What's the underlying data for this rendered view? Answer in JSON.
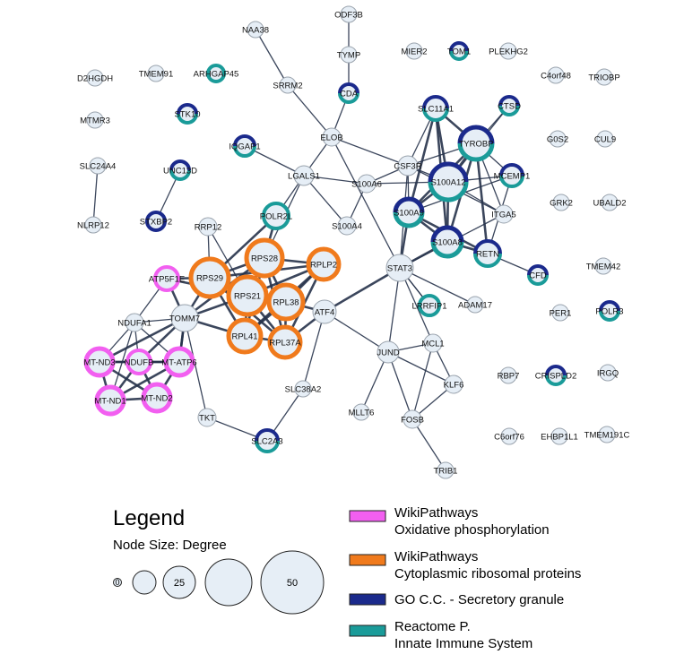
{
  "legend": {
    "title": "Legend",
    "size_label": "Node Size:  Degree",
    "size_examples": [
      "0",
      "",
      "25",
      "",
      "50"
    ],
    "categories": [
      {
        "color": "#f25ff0",
        "line1": "WikiPathways",
        "line2": "Oxidative phosphorylation"
      },
      {
        "color": "#f07a1c",
        "line1": "WikiPathways",
        "line2": "Cytoplasmic ribosomal proteins"
      },
      {
        "color": "#1b2a8c",
        "line1": "GO C.C. - Secretory granule",
        "line2": ""
      },
      {
        "color": "#1a9b99",
        "line1": "Reactome P.",
        "line2": "Innate Immune System"
      }
    ]
  },
  "colors": {
    "node_fill": "#e6eef6",
    "node_stroke": "#9aa3ad",
    "edge": "#26324a",
    "oxphos": "#f25ff0",
    "ribosomal": "#f07a1c",
    "secretory": "#1b2a8c",
    "innate": "#1a9b99"
  },
  "nodes": [
    {
      "id": "ODF3B",
      "label": "ODF3B"
    },
    {
      "id": "NAA38",
      "label": "NAA38"
    },
    {
      "id": "TYMP",
      "label": "TYMP"
    },
    {
      "id": "MIER2",
      "label": "MIER2"
    },
    {
      "id": "TOM1",
      "label": "TOM1",
      "ring": [
        "secretory",
        "innate"
      ]
    },
    {
      "id": "PLEKHG2",
      "label": "PLEKHG2"
    },
    {
      "id": "D2HGDH",
      "label": "D2HGDH"
    },
    {
      "id": "TMEM91",
      "label": "TMEM91"
    },
    {
      "id": "ARHGAP45",
      "label": "ARHGAP45",
      "ring": [
        "innate"
      ]
    },
    {
      "id": "C4orf48",
      "label": "C4orf48"
    },
    {
      "id": "TRIOBP",
      "label": "TRIOBP"
    },
    {
      "id": "SRRM2",
      "label": "SRRM2"
    },
    {
      "id": "CDA",
      "label": "CDA",
      "ring": [
        "secretory",
        "innate"
      ]
    },
    {
      "id": "MTMR3",
      "label": "MTMR3"
    },
    {
      "id": "STK10",
      "label": "STK10",
      "ring": [
        "secretory",
        "innate"
      ]
    },
    {
      "id": "SLC11A1",
      "label": "SLC11A1",
      "ring": [
        "secretory",
        "innate"
      ]
    },
    {
      "id": "CTSD",
      "label": "CTSD",
      "ring": [
        "secretory",
        "innate"
      ]
    },
    {
      "id": "ELOB",
      "label": "ELOB"
    },
    {
      "id": "IQGAP1",
      "label": "IQGAP1",
      "ring": [
        "secretory",
        "innate"
      ]
    },
    {
      "id": "TYROBP",
      "label": "TYROBP",
      "ring": [
        "secretory",
        "innate"
      ]
    },
    {
      "id": "G0S2",
      "label": "G0S2"
    },
    {
      "id": "CUL9",
      "label": "CUL9"
    },
    {
      "id": "SLC24A4",
      "label": "SLC24A4"
    },
    {
      "id": "UNC13D",
      "label": "UNC13D",
      "ring": [
        "secretory",
        "innate"
      ]
    },
    {
      "id": "CSF3R",
      "label": "CSF3R"
    },
    {
      "id": "LGALS1",
      "label": "LGALS1"
    },
    {
      "id": "MCEMP1",
      "label": "MCEMP1",
      "ring": [
        "secretory",
        "innate"
      ]
    },
    {
      "id": "S100A6",
      "label": "S100A6"
    },
    {
      "id": "S100A12",
      "label": "S100A12",
      "ring": [
        "secretory",
        "innate"
      ]
    },
    {
      "id": "GRK2",
      "label": "GRK2"
    },
    {
      "id": "UBALD2",
      "label": "UBALD2"
    },
    {
      "id": "STXBP2",
      "label": "STXBP2",
      "ring": [
        "secretory"
      ]
    },
    {
      "id": "NLRP12",
      "label": "NLRP12"
    },
    {
      "id": "POLR2L",
      "label": "POLR2L",
      "ring": [
        "innate"
      ]
    },
    {
      "id": "RRP12",
      "label": "RRP12"
    },
    {
      "id": "S100A4",
      "label": "S100A4"
    },
    {
      "id": "S100A9",
      "label": "S100A9",
      "ring": [
        "secretory",
        "innate"
      ]
    },
    {
      "id": "ITGA5",
      "label": "ITGA5"
    },
    {
      "id": "S100A8",
      "label": "S100A8",
      "ring": [
        "secretory",
        "innate"
      ]
    },
    {
      "id": "RETN",
      "label": "RETN",
      "ring": [
        "secretory",
        "innate"
      ]
    },
    {
      "id": "RPS28",
      "label": "RPS28",
      "ring": [
        "ribosomal"
      ]
    },
    {
      "id": "RPLP2",
      "label": "RPLP2",
      "ring": [
        "ribosomal"
      ]
    },
    {
      "id": "ATP5F1E",
      "label": "ATP5F1E",
      "ring": [
        "oxphos"
      ]
    },
    {
      "id": "RPS29",
      "label": "RPS29",
      "ring": [
        "ribosomal"
      ]
    },
    {
      "id": "STAT3",
      "label": "STAT3"
    },
    {
      "id": "CFD",
      "label": "CFD",
      "ring": [
        "secretory",
        "innate"
      ]
    },
    {
      "id": "TMEM42",
      "label": "TMEM42"
    },
    {
      "id": "RPS21",
      "label": "RPS21",
      "ring": [
        "ribosomal"
      ]
    },
    {
      "id": "RPL38",
      "label": "RPL38",
      "ring": [
        "ribosomal"
      ]
    },
    {
      "id": "NDUFA1",
      "label": "NDUFA1"
    },
    {
      "id": "TOMM7",
      "label": "TOMM7"
    },
    {
      "id": "ATF4",
      "label": "ATF4"
    },
    {
      "id": "LRRFIP1",
      "label": "LRRFIP1",
      "ring": [
        "innate"
      ]
    },
    {
      "id": "ADAM17",
      "label": "ADAM17"
    },
    {
      "id": "PER1",
      "label": "PER1"
    },
    {
      "id": "POLR3",
      "label": "POLR3",
      "ring": [
        "secretory",
        "innate"
      ]
    },
    {
      "id": "RPL41",
      "label": "RPL41",
      "ring": [
        "ribosomal"
      ]
    },
    {
      "id": "RPL37A",
      "label": "RPL37A",
      "ring": [
        "ribosomal"
      ]
    },
    {
      "id": "MCL1",
      "label": "MCL1"
    },
    {
      "id": "MT-ND3",
      "label": "MT-ND3",
      "ring": [
        "oxphos"
      ]
    },
    {
      "id": "NDUFB",
      "label": "NDUFB",
      "ring": [
        "oxphos"
      ]
    },
    {
      "id": "MT-ATP6",
      "label": "MT-ATP6",
      "ring": [
        "oxphos"
      ]
    },
    {
      "id": "JUND",
      "label": "JUND"
    },
    {
      "id": "RBP7",
      "label": "RBP7"
    },
    {
      "id": "CRISPLD2",
      "label": "CRISPLD2",
      "ring": [
        "secretory",
        "innate"
      ]
    },
    {
      "id": "IRGQ",
      "label": "IRGQ"
    },
    {
      "id": "KLF6",
      "label": "KLF6"
    },
    {
      "id": "MT-ND1",
      "label": "MT-ND1",
      "ring": [
        "oxphos"
      ]
    },
    {
      "id": "MT-ND2",
      "label": "MT-ND2",
      "ring": [
        "oxphos"
      ]
    },
    {
      "id": "SLC38A2",
      "label": "SLC38A2"
    },
    {
      "id": "MLLT6",
      "label": "MLLT6"
    },
    {
      "id": "TKT",
      "label": "TKT"
    },
    {
      "id": "FOSB",
      "label": "FOSB"
    },
    {
      "id": "C6orf76",
      "label": "C6orf76"
    },
    {
      "id": "EHBP1L1",
      "label": "EHBP1L1"
    },
    {
      "id": "TMEM191C",
      "label": "TMEM191C"
    },
    {
      "id": "SLC2A3",
      "label": "SLC2A3",
      "ring": [
        "secretory",
        "innate"
      ]
    },
    {
      "id": "TRIB1",
      "label": "TRIB1"
    }
  ],
  "edges": [
    [
      "ODF3B",
      "TYMP"
    ],
    [
      "TYMP",
      "CDA"
    ],
    [
      "CDA",
      "ELOB"
    ],
    [
      "NAA38",
      "SRRM2"
    ],
    [
      "SRRM2",
      "ELOB"
    ],
    [
      "ELOB",
      "LGALS1"
    ],
    [
      "ELOB",
      "CSF3R"
    ],
    [
      "ELOB",
      "STAT3"
    ],
    [
      "IQGAP1",
      "LGALS1"
    ],
    [
      "LGALS1",
      "S100A6"
    ],
    [
      "LGALS1",
      "S100A4"
    ],
    [
      "LGALS1",
      "POLR2L"
    ],
    [
      "LGALS1",
      "RPS28"
    ],
    [
      "S100A6",
      "S100A4"
    ],
    [
      "S100A6",
      "CSF3R"
    ],
    [
      "S100A6",
      "S100A12"
    ],
    [
      "CSF3R",
      "S100A12"
    ],
    [
      "CSF3R",
      "SLC11A1"
    ],
    [
      "CSF3R",
      "TYROBP"
    ],
    [
      "CSF3R",
      "STAT3"
    ],
    [
      "CSF3R",
      "S100A9"
    ],
    [
      "SLC11A1",
      "TYROBP"
    ],
    [
      "SLC11A1",
      "S100A12"
    ],
    [
      "SLC11A1",
      "S100A9"
    ],
    [
      "SLC11A1",
      "S100A8"
    ],
    [
      "CTSD",
      "TYROBP"
    ],
    [
      "CTSD",
      "S100A12"
    ],
    [
      "TYROBP",
      "S100A12"
    ],
    [
      "TYROBP",
      "MCEMP1"
    ],
    [
      "TYROBP",
      "S100A9"
    ],
    [
      "TYROBP",
      "S100A8"
    ],
    [
      "TYROBP",
      "RETN"
    ],
    [
      "TYROBP",
      "ITGA5"
    ],
    [
      "MCEMP1",
      "S100A12"
    ],
    [
      "MCEMP1",
      "RETN"
    ],
    [
      "S100A12",
      "S100A9"
    ],
    [
      "S100A12",
      "S100A8"
    ],
    [
      "S100A12",
      "ITGA5"
    ],
    [
      "S100A9",
      "S100A8"
    ],
    [
      "S100A9",
      "STAT3"
    ],
    [
      "S100A9",
      "RETN"
    ],
    [
      "S100A8",
      "RETN"
    ],
    [
      "S100A8",
      "STAT3"
    ],
    [
      "ITGA5",
      "STAT3"
    ],
    [
      "RETN",
      "CFD"
    ],
    [
      "STAT3",
      "ATF4"
    ],
    [
      "STAT3",
      "LRRFIP1"
    ],
    [
      "STAT3",
      "ADAM17"
    ],
    [
      "STAT3",
      "JUND"
    ],
    [
      "STAT3",
      "MCL1"
    ],
    [
      "UNC13D",
      "STXBP2"
    ],
    [
      "SLC24A4",
      "NLRP12"
    ],
    [
      "RRP12",
      "RPS29"
    ],
    [
      "RRP12",
      "RPS21"
    ],
    [
      "POLR2L",
      "RPS28"
    ],
    [
      "POLR2L",
      "RPS29"
    ],
    [
      "RPS28",
      "RPLP2"
    ],
    [
      "RPS28",
      "RPS29"
    ],
    [
      "RPS28",
      "RPS21"
    ],
    [
      "RPS28",
      "RPL38"
    ],
    [
      "RPS28",
      "RPL41"
    ],
    [
      "RPS28",
      "RPL37A"
    ],
    [
      "RPLP2",
      "RPS29"
    ],
    [
      "RPLP2",
      "RPS21"
    ],
    [
      "RPLP2",
      "RPL38"
    ],
    [
      "RPLP2",
      "RPL41"
    ],
    [
      "RPLP2",
      "RPL37A"
    ],
    [
      "RPS29",
      "RPS21"
    ],
    [
      "RPS29",
      "RPL38"
    ],
    [
      "RPS29",
      "RPL41"
    ],
    [
      "RPS29",
      "RPL37A"
    ],
    [
      "RPS29",
      "ATP5F1E"
    ],
    [
      "RPS29",
      "TOMM7"
    ],
    [
      "RPS21",
      "RPL38"
    ],
    [
      "RPS21",
      "RPL41"
    ],
    [
      "RPS21",
      "RPL37A"
    ],
    [
      "RPS21",
      "TOMM7"
    ],
    [
      "RPL38",
      "RPL41"
    ],
    [
      "RPL38",
      "RPL37A"
    ],
    [
      "RPL38",
      "ATF4"
    ],
    [
      "RPL41",
      "RPL37A"
    ],
    [
      "RPL41",
      "TOMM7"
    ],
    [
      "RPL37A",
      "ATF4"
    ],
    [
      "TOMM7",
      "ATP5F1E"
    ],
    [
      "TOMM7",
      "NDUFA1"
    ],
    [
      "TOMM7",
      "MT-ND3"
    ],
    [
      "TOMM7",
      "NDUFB"
    ],
    [
      "TOMM7",
      "MT-ATP6"
    ],
    [
      "TOMM7",
      "RPS28"
    ],
    [
      "TOMM7",
      "TKT"
    ],
    [
      "ATP5F1E",
      "NDUFA1"
    ],
    [
      "ATP5F1E",
      "RPS21"
    ],
    [
      "NDUFA1",
      "MT-ND3"
    ],
    [
      "NDUFA1",
      "NDUFB"
    ],
    [
      "NDUFA1",
      "MT-ATP6"
    ],
    [
      "NDUFA1",
      "MT-ND1"
    ],
    [
      "MT-ND3",
      "NDUFB"
    ],
    [
      "MT-ND3",
      "MT-ATP6"
    ],
    [
      "MT-ND3",
      "MT-ND1"
    ],
    [
      "MT-ND3",
      "MT-ND2"
    ],
    [
      "NDUFB",
      "MT-ATP6"
    ],
    [
      "NDUFB",
      "MT-ND1"
    ],
    [
      "NDUFB",
      "MT-ND2"
    ],
    [
      "MT-ATP6",
      "MT-ND1"
    ],
    [
      "MT-ATP6",
      "MT-ND2"
    ],
    [
      "MT-ND1",
      "MT-ND2"
    ],
    [
      "MT-ATP6",
      "TOMM7"
    ],
    [
      "ATF4",
      "SLC38A2"
    ],
    [
      "SLC38A2",
      "SLC2A3"
    ],
    [
      "TKT",
      "SLC2A3"
    ],
    [
      "JUND",
      "MCL1"
    ],
    [
      "JUND",
      "KLF6"
    ],
    [
      "JUND",
      "FOSB"
    ],
    [
      "JUND",
      "MLLT6"
    ],
    [
      "FOSB",
      "KLF6"
    ],
    [
      "FOSB",
      "MCL1"
    ],
    [
      "FOSB",
      "TRIB1"
    ],
    [
      "MCL1",
      "KLF6"
    ],
    [
      "ATF4",
      "JUND"
    ],
    [
      "LRRFIP1",
      "STAT3"
    ],
    [
      "MCEMP1",
      "S100A9"
    ],
    [
      "CSF3R",
      "ITGA5"
    ]
  ]
}
